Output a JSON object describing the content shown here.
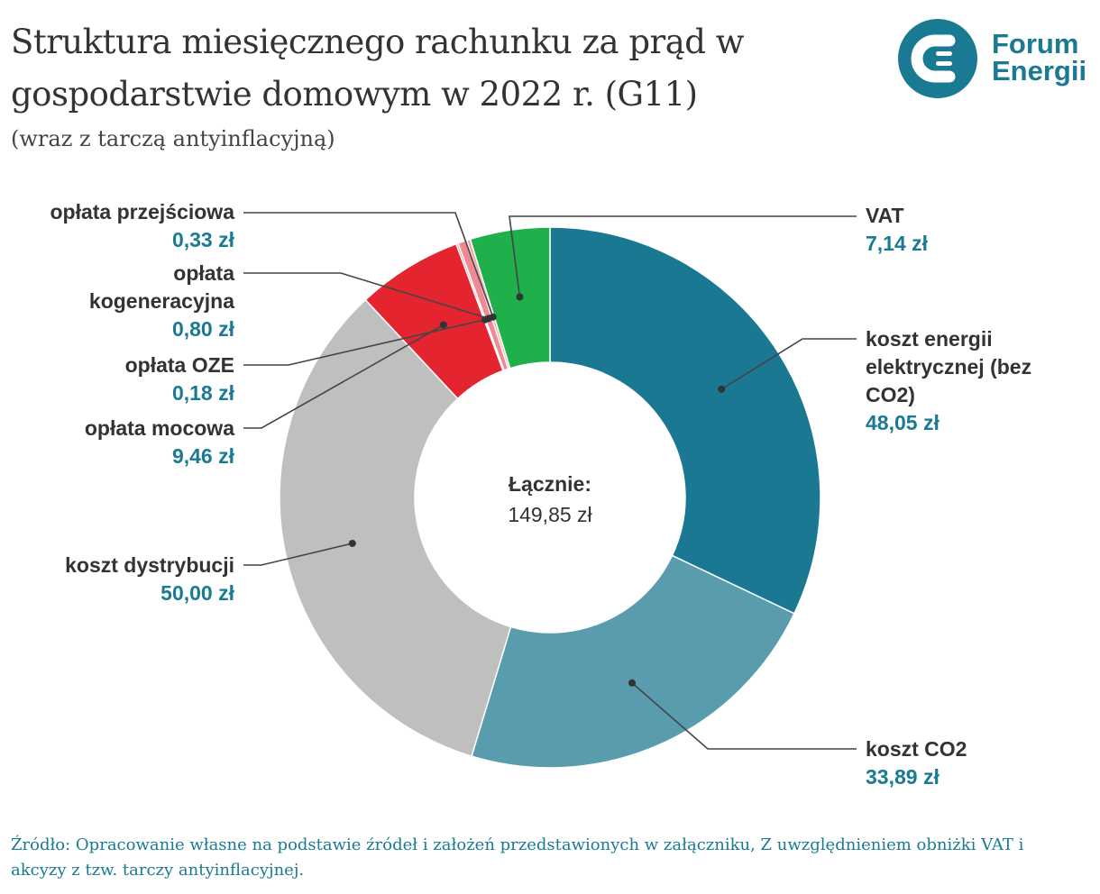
{
  "title": "Struktura miesięcznego rachunku za prąd w gospodarstwie domowym w 2022 r. (G11)",
  "subtitle": "(wraz z tarczą antyinflacyjną)",
  "logo": {
    "line1": "Forum",
    "line2": "Energii"
  },
  "source": "Źródło: Opracowanie własne na podstawie źródeł i założeń przedstawionych w załączniku, Z uwzględnieniem obniżki VAT i akcyzy z tzw. tarczy antyinflacyjnej.",
  "chart_data": {
    "type": "pie",
    "donut": true,
    "center_label": "Łącznie:",
    "center_value": "149,85 zł",
    "unit": "zł",
    "slices": [
      {
        "name": "koszt energii elektrycznej (bez CO2)",
        "value": 48.05,
        "label": "48,05 zł",
        "color": "#1b7893"
      },
      {
        "name": "koszt CO2",
        "value": 33.89,
        "label": "33,89 zł",
        "color": "#589cae"
      },
      {
        "name": "koszt dystrybucji",
        "value": 50.0,
        "label": "50,00 zł",
        "color": "#bfbfbf"
      },
      {
        "name": "opłata mocowa",
        "value": 9.46,
        "label": "9,46 zł",
        "color": "#e4252f"
      },
      {
        "name": "opłata OZE",
        "value": 0.18,
        "label": "0,18 zł",
        "color": "#ee6f78"
      },
      {
        "name": "opłata kogeneracyjna",
        "value": 0.8,
        "label": "0,80 zł",
        "color": "#f08a92"
      },
      {
        "name": "opłata przejściowa",
        "value": 0.33,
        "label": "0,33 zł",
        "color": "#f4a5aa"
      },
      {
        "name": "VAT",
        "value": 7.14,
        "label": "7,14 zł",
        "color": "#1fb04c"
      }
    ]
  }
}
